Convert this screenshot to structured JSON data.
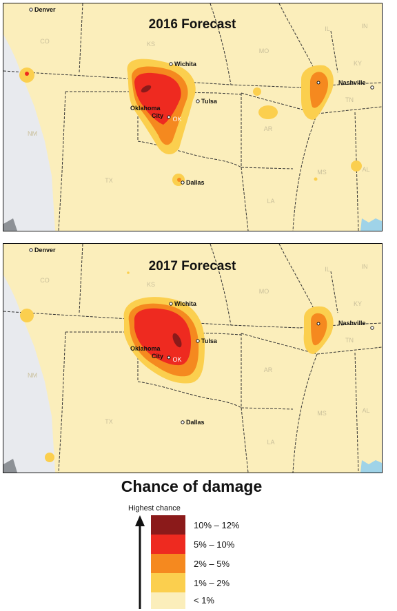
{
  "maps": [
    {
      "title": "2016 Forecast",
      "cities": {
        "denver": "Denver",
        "wichita": "Wichita",
        "tulsa": "Tulsa",
        "oklahoma": "Oklahoma",
        "city": "City",
        "dallas": "Dallas",
        "nashville": "Nashville"
      },
      "states": {
        "co": "CO",
        "ks": "KS",
        "mo": "MO",
        "il": "IL",
        "in": "IN",
        "ky": "KY",
        "tn": "TN",
        "nm": "NM",
        "ok": "OK",
        "ar": "AR",
        "ms": "MS",
        "al": "AL",
        "tx": "TX",
        "la": "LA"
      }
    },
    {
      "title": "2017 Forecast",
      "cities": {
        "denver": "Denver",
        "wichita": "Wichita",
        "tulsa": "Tulsa",
        "oklahoma": "Oklahoma",
        "city": "City",
        "dallas": "Dallas",
        "nashville": "Nashville"
      },
      "states": {
        "co": "CO",
        "ks": "KS",
        "mo": "MO",
        "il": "IL",
        "in": "IN",
        "ky": "KY",
        "tn": "TN",
        "nm": "NM",
        "ok": "OK",
        "ar": "AR",
        "ms": "MS",
        "al": "AL",
        "tx": "TX",
        "la": "LA"
      }
    }
  ],
  "legend": {
    "title": "Chance of damage",
    "axis_label": "Highest chance",
    "items": [
      {
        "label": "10% – 12%",
        "color": "#8b1a1a"
      },
      {
        "label": "5% – 10%",
        "color": "#ee2a20"
      },
      {
        "label": "2% – 5%",
        "color": "#f5891f"
      },
      {
        "label": "1% – 2%",
        "color": "#fbcf4e"
      },
      {
        "label": "< 1%",
        "color": "#fbeebb"
      }
    ]
  },
  "colors": {
    "base": "#fbeebb",
    "low": "#fbcf4e",
    "mid": "#f5891f",
    "high": "#ee2a20",
    "highest": "#8b1a1a",
    "outside": "#e8eaee",
    "water": "#9fd3e8"
  }
}
